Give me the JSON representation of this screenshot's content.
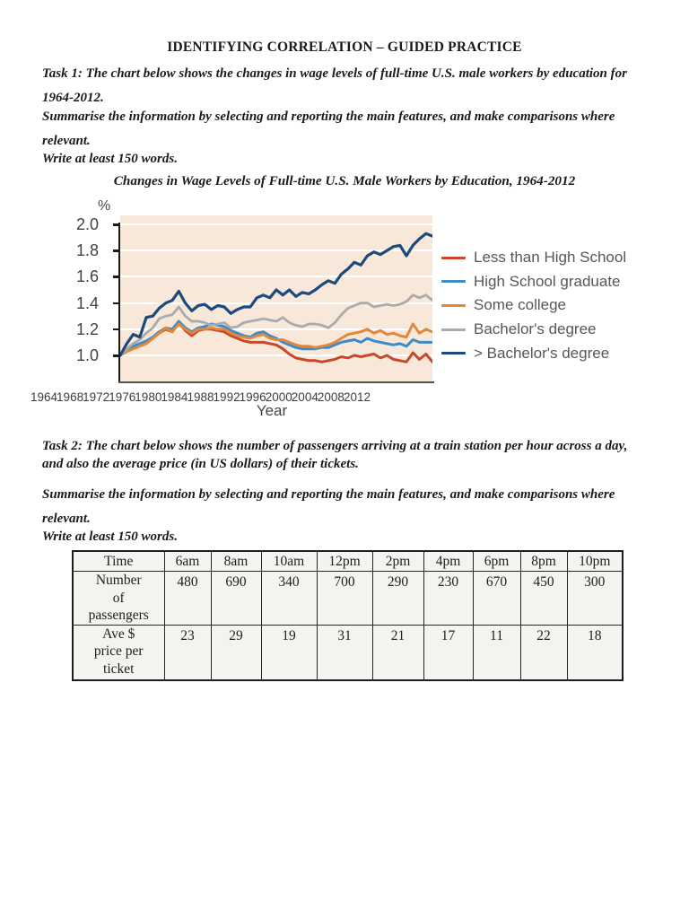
{
  "document": {
    "title": "IDENTIFYING CORRELATION – GUIDED PRACTICE",
    "task1": {
      "prompt_lines": [
        "Task 1: The chart below shows the changes in wage levels of full-time U.S. male workers by education for",
        "1964-2012."
      ],
      "instruction_lines": [
        "Summarise the information by selecting and reporting the main features, and make comparisons where",
        "relevant."
      ],
      "word_count_note": "Write at least 150 words."
    },
    "task2": {
      "prompt_lines": [
        "Task 2: The chart below shows the number of passengers arriving at a train station per hour across a day,",
        "and also the average price (in US dollars) of their tickets."
      ],
      "instruction_lines": [
        "Summarise the information by selecting and reporting the main features, and make comparisons where",
        "relevant."
      ],
      "word_count_note": "Write at least 150 words."
    }
  },
  "chart_data": [
    {
      "type": "line",
      "title": "Changes in Wage Levels of Full-time U.S. Male Workers by Education, 1964-2012",
      "xlabel": "Year",
      "ylabel": "%",
      "ylim": [
        0.79,
        2.05
      ],
      "yticks": [
        2.0,
        1.8,
        1.6,
        1.4,
        1.2,
        1.0
      ],
      "xticks": [
        1964,
        1968,
        1972,
        1976,
        1980,
        1984,
        1988,
        1992,
        1996,
        2000,
        2004,
        2008,
        2012
      ],
      "x_range": [
        1964,
        2012
      ],
      "x_step": 1,
      "grid": "horizontal-white",
      "plot_bg": "#f8e8d9",
      "grid_color": "#ffffff",
      "legend_position": "right",
      "series": [
        {
          "name": "Less than High School",
          "color": "#c7492a",
          "values": [
            1.0,
            1.03,
            1.06,
            1.08,
            1.1,
            1.13,
            1.17,
            1.2,
            1.18,
            1.25,
            1.19,
            1.15,
            1.19,
            1.2,
            1.2,
            1.19,
            1.18,
            1.15,
            1.13,
            1.11,
            1.1,
            1.1,
            1.1,
            1.09,
            1.08,
            1.05,
            1.01,
            0.98,
            0.97,
            0.96,
            0.96,
            0.95,
            0.96,
            0.97,
            0.99,
            0.98,
            1.0,
            0.99,
            1.0,
            1.01,
            0.98,
            1.0,
            0.97,
            0.96,
            0.95,
            1.02,
            0.97,
            1.01,
            0.95
          ]
        },
        {
          "name": "High School graduate",
          "color": "#3d8bc9",
          "values": [
            1.0,
            1.04,
            1.07,
            1.09,
            1.11,
            1.14,
            1.18,
            1.21,
            1.2,
            1.26,
            1.21,
            1.18,
            1.21,
            1.22,
            1.24,
            1.23,
            1.22,
            1.19,
            1.17,
            1.15,
            1.14,
            1.17,
            1.18,
            1.15,
            1.13,
            1.1,
            1.08,
            1.06,
            1.05,
            1.05,
            1.05,
            1.06,
            1.06,
            1.08,
            1.1,
            1.11,
            1.12,
            1.1,
            1.13,
            1.11,
            1.1,
            1.09,
            1.08,
            1.09,
            1.07,
            1.12,
            1.1,
            1.1,
            1.1
          ]
        },
        {
          "name": "Some college",
          "color": "#e1883a",
          "values": [
            1.0,
            1.03,
            1.05,
            1.07,
            1.09,
            1.13,
            1.17,
            1.21,
            1.18,
            1.24,
            1.2,
            1.17,
            1.2,
            1.2,
            1.21,
            1.2,
            1.2,
            1.17,
            1.15,
            1.14,
            1.13,
            1.15,
            1.16,
            1.13,
            1.12,
            1.12,
            1.1,
            1.08,
            1.07,
            1.07,
            1.06,
            1.07,
            1.08,
            1.1,
            1.13,
            1.16,
            1.17,
            1.18,
            1.2,
            1.17,
            1.19,
            1.16,
            1.17,
            1.15,
            1.14,
            1.24,
            1.17,
            1.2,
            1.18
          ]
        },
        {
          "name": "Bachelor's degree",
          "color": "#acabab",
          "values": [
            1.0,
            1.05,
            1.09,
            1.12,
            1.17,
            1.21,
            1.28,
            1.3,
            1.31,
            1.37,
            1.3,
            1.26,
            1.26,
            1.25,
            1.23,
            1.24,
            1.25,
            1.21,
            1.22,
            1.25,
            1.26,
            1.27,
            1.28,
            1.27,
            1.26,
            1.29,
            1.25,
            1.23,
            1.22,
            1.24,
            1.24,
            1.23,
            1.21,
            1.25,
            1.31,
            1.36,
            1.38,
            1.4,
            1.4,
            1.37,
            1.38,
            1.39,
            1.38,
            1.39,
            1.41,
            1.46,
            1.44,
            1.46,
            1.42
          ]
        },
        {
          "name": "> Bachelor's degree",
          "color": "#1c4a7d",
          "values": [
            1.0,
            1.09,
            1.16,
            1.14,
            1.29,
            1.3,
            1.36,
            1.4,
            1.42,
            1.49,
            1.4,
            1.34,
            1.38,
            1.39,
            1.35,
            1.38,
            1.37,
            1.32,
            1.35,
            1.37,
            1.37,
            1.44,
            1.46,
            1.44,
            1.5,
            1.46,
            1.5,
            1.45,
            1.48,
            1.47,
            1.5,
            1.54,
            1.57,
            1.55,
            1.62,
            1.66,
            1.71,
            1.69,
            1.76,
            1.79,
            1.77,
            1.8,
            1.83,
            1.84,
            1.76,
            1.84,
            1.89,
            1.93,
            1.91
          ]
        }
      ]
    },
    {
      "type": "table",
      "columns": [
        "Time",
        "6am",
        "8am",
        "10am",
        "12pm",
        "2pm",
        "4pm",
        "6pm",
        "8pm",
        "10pm"
      ],
      "rows": [
        {
          "label_lines": [
            "Number",
            "of",
            "passengers"
          ],
          "values": [
            480,
            690,
            340,
            700,
            290,
            230,
            670,
            450,
            300
          ]
        },
        {
          "label_lines": [
            "Ave $",
            "price per",
            "ticket"
          ],
          "values": [
            23,
            29,
            19,
            31,
            21,
            17,
            11,
            22,
            18
          ]
        }
      ]
    }
  ]
}
